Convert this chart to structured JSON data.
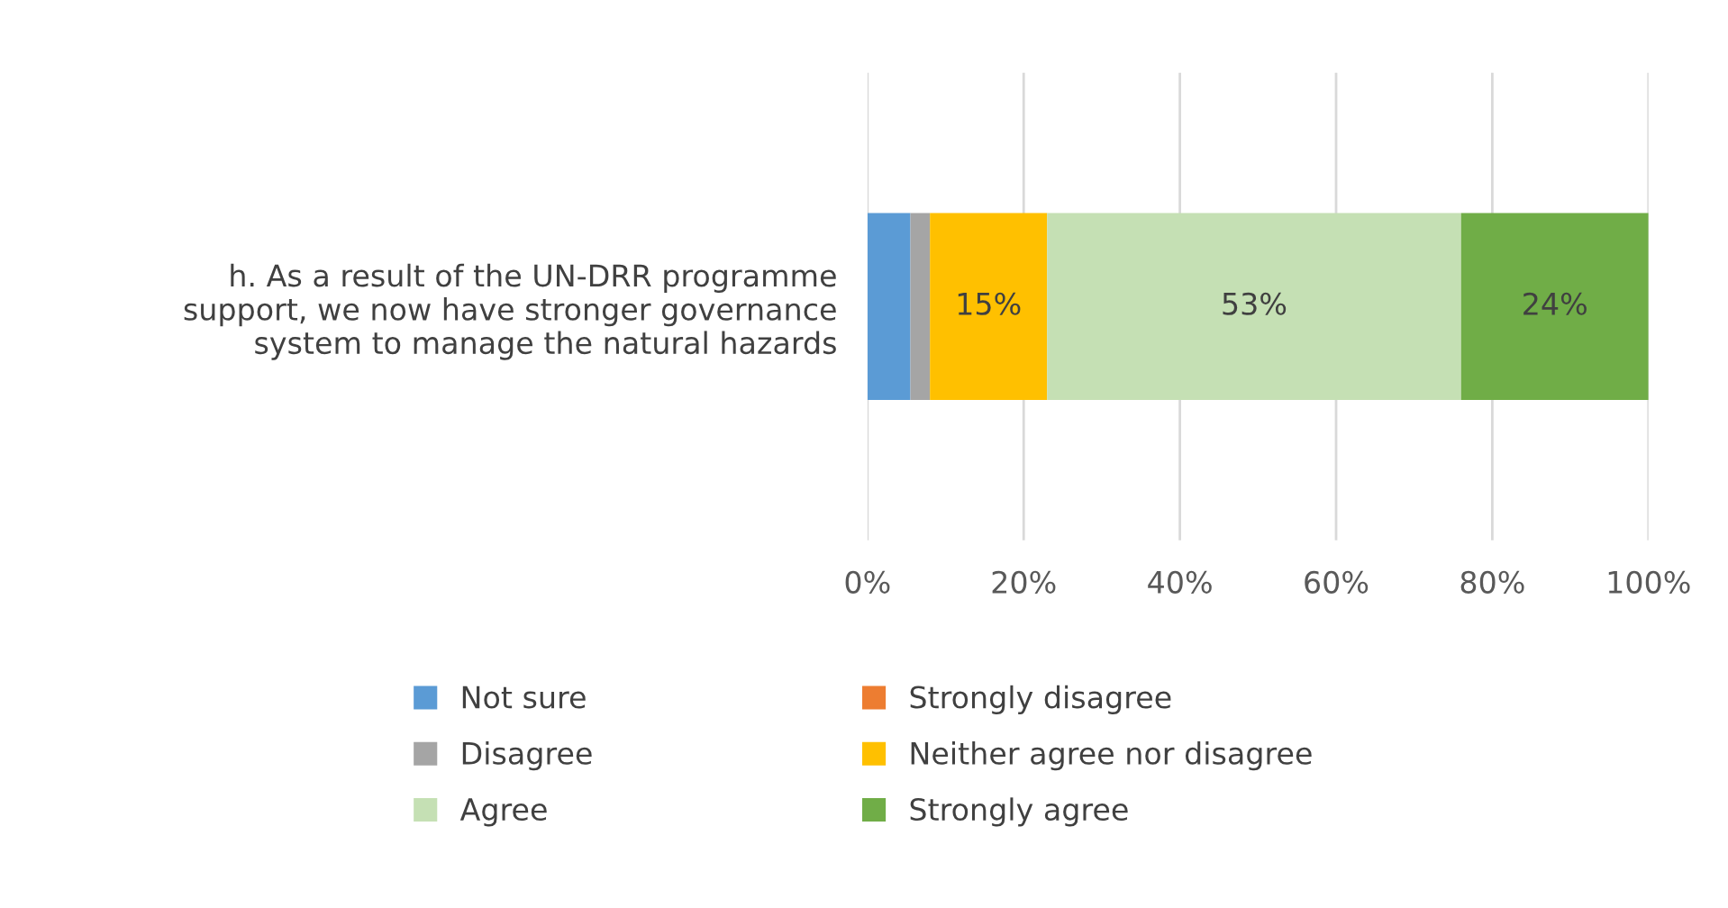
{
  "chart_data": {
    "type": "bar",
    "orientation": "horizontal",
    "stacked": true,
    "categories": [
      "h. As a result of the UN-DRR programme\nsupport, we now have stronger governance\nsystem to manage the natural hazards"
    ],
    "series": [
      {
        "name": "Not sure",
        "color": "#5b9bd5",
        "values": [
          5.5
        ],
        "value_labels": [
          null
        ]
      },
      {
        "name": "Strongly disagree",
        "color": "#ed7d31",
        "values": [
          0
        ],
        "value_labels": [
          null
        ]
      },
      {
        "name": "Disagree",
        "color": "#a5a5a5",
        "values": [
          2.5
        ],
        "value_labels": [
          null
        ]
      },
      {
        "name": "Neither agree nor disagree",
        "color": "#ffc000",
        "values": [
          15
        ],
        "value_labels": [
          "15%"
        ]
      },
      {
        "name": "Agree",
        "color": "#c5e0b4",
        "values": [
          53
        ],
        "value_labels": [
          "53%"
        ]
      },
      {
        "name": "Strongly agree",
        "color": "#70ad47",
        "values": [
          24
        ],
        "value_labels": [
          "24%"
        ]
      }
    ],
    "xlim": [
      0,
      100
    ],
    "xticks": [
      {
        "value": 0,
        "label": "0%"
      },
      {
        "value": 20,
        "label": "20%"
      },
      {
        "value": 40,
        "label": "40%"
      },
      {
        "value": 60,
        "label": "60%"
      },
      {
        "value": 80,
        "label": "80%"
      },
      {
        "value": 100,
        "label": "100%"
      }
    ],
    "grid": "x",
    "legend": "bottom"
  }
}
